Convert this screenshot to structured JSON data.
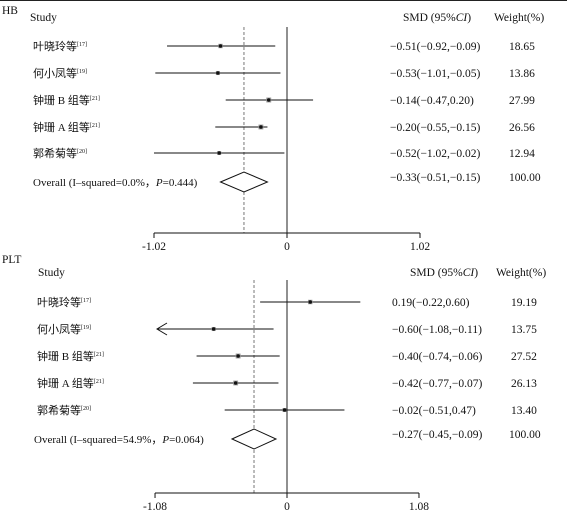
{
  "chart_data": [
    {
      "type": "forest",
      "panel_label": "HB",
      "headers": {
        "study": "Study",
        "estimate": "SMD (95%CI)",
        "estimate_prefix": "SMD (95%",
        "estimate_italic": "CI",
        "estimate_suffix": ")",
        "weight": "Weight(%)"
      },
      "xticks": [
        -1.02,
        0,
        1.02
      ],
      "xtick_labels": [
        "-1.02",
        "0",
        "1.02"
      ],
      "pooled_line": -0.33,
      "studies": [
        {
          "name": "叶晓玲等",
          "ref": "[17]",
          "smd": -0.51,
          "lower": -0.92,
          "upper": -0.09,
          "weight": 18.65,
          "ci_text": "−0.51(−0.92,−0.09)",
          "weight_text": "18.65"
        },
        {
          "name": "何小凤等",
          "ref": "[19]",
          "smd": -0.53,
          "lower": -1.01,
          "upper": -0.05,
          "weight": 13.86,
          "ci_text": "−0.53(−1.01,−0.05)",
          "weight_text": "13.86"
        },
        {
          "name": "钟珊 B 组等",
          "ref": "[21]",
          "smd": -0.14,
          "lower": -0.47,
          "upper": 0.2,
          "weight": 27.99,
          "ci_text": "−0.14(−0.47,0.20)",
          "weight_text": "27.99"
        },
        {
          "name": "钟珊 A 组等",
          "ref": "[21]",
          "smd": -0.2,
          "lower": -0.55,
          "upper": -0.15,
          "weight": 26.56,
          "ci_text": "−0.20(−0.55,−0.15)",
          "weight_text": "26.56"
        },
        {
          "name": "郭希菊等",
          "ref": "[20]",
          "smd": -0.52,
          "lower": -1.02,
          "upper": -0.02,
          "weight": 12.94,
          "ci_text": "−0.52(−1.02,−0.02)",
          "weight_text": "12.94"
        }
      ],
      "overall": {
        "label_prefix": "Overall (I–squared=0.0%，",
        "label_p": "P",
        "label_suffix": "=0.444)",
        "smd": -0.33,
        "lower": -0.51,
        "upper": -0.15,
        "ci_text": "−0.33(−0.51,−0.15)",
        "weight_text": "100.00"
      }
    },
    {
      "type": "forest",
      "panel_label": "PLT",
      "headers": {
        "study": "Study",
        "estimate": "SMD (95%CI)",
        "estimate_prefix": "SMD (95%",
        "estimate_italic": "CI",
        "estimate_suffix": ")",
        "weight": "Weight(%)"
      },
      "xticks": [
        -1.08,
        0,
        1.08
      ],
      "xtick_labels": [
        "-1.08",
        "0",
        "1.08"
      ],
      "pooled_line": -0.27,
      "studies": [
        {
          "name": "叶晓玲等",
          "ref": "[17]",
          "smd": 0.19,
          "lower": -0.22,
          "upper": 0.6,
          "weight": 19.19,
          "ci_text": "0.19(−0.22,0.60)",
          "weight_text": "19.19"
        },
        {
          "name": "何小凤等",
          "ref": "[19]",
          "smd": -0.6,
          "lower": -1.08,
          "upper": -0.11,
          "weight": 13.75,
          "ci_text": "−0.60(−1.08,−0.11)",
          "weight_text": "13.75",
          "arrow_left": true
        },
        {
          "name": "钟珊 B 组等",
          "ref": "[21]",
          "smd": -0.4,
          "lower": -0.74,
          "upper": -0.06,
          "weight": 27.52,
          "ci_text": "−0.40(−0.74,−0.06)",
          "weight_text": "27.52"
        },
        {
          "name": "钟珊 A 组等",
          "ref": "[21]",
          "smd": -0.42,
          "lower": -0.77,
          "upper": -0.07,
          "weight": 26.13,
          "ci_text": "−0.42(−0.77,−0.07)",
          "weight_text": "26.13"
        },
        {
          "name": "郭希菊等",
          "ref": "[20]",
          "smd": -0.02,
          "lower": -0.51,
          "upper": 0.47,
          "weight": 13.4,
          "ci_text": "−0.02(−0.51,0.47)",
          "weight_text": "13.40"
        }
      ],
      "overall": {
        "label_prefix": "Overall (I–squared=54.9%，",
        "label_p": "P",
        "label_suffix": "=0.064)",
        "smd": -0.27,
        "lower": -0.45,
        "upper": -0.09,
        "ci_text": "−0.27(−0.45,−0.09)",
        "weight_text": "100.00"
      }
    }
  ]
}
